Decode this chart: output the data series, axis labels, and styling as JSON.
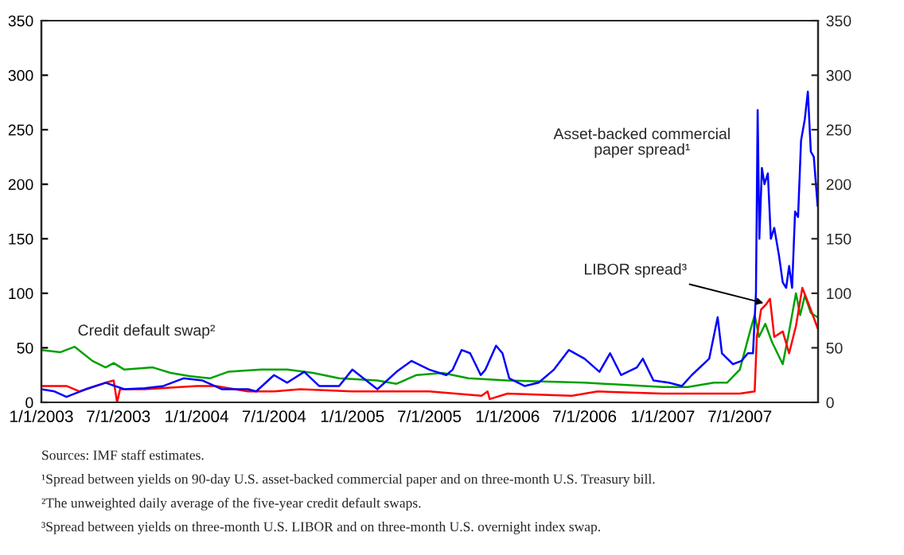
{
  "chart_data": {
    "type": "line",
    "grid": false,
    "xlim": [
      "2003-01-01",
      "2008-01-01"
    ],
    "xticks": [
      {
        "value": "2003-01-01",
        "label": "1/1/2003"
      },
      {
        "value": "2003-07-01",
        "label": "7/1/2003"
      },
      {
        "value": "2004-01-01",
        "label": "1/1/2004"
      },
      {
        "value": "2004-07-01",
        "label": "7/1/2004"
      },
      {
        "value": "2005-01-01",
        "label": "1/1/2005"
      },
      {
        "value": "2005-07-01",
        "label": "7/1/2005"
      },
      {
        "value": "2006-01-01",
        "label": "1/1/2006"
      },
      {
        "value": "2006-07-01",
        "label": "7/1/2006"
      },
      {
        "value": "2007-01-01",
        "label": "1/1/2007"
      },
      {
        "value": "2007-07-01",
        "label": "7/1/2007"
      }
    ],
    "ylim": [
      0,
      350
    ],
    "yticks": [
      0,
      50,
      100,
      150,
      200,
      250,
      300,
      350
    ],
    "y2lim": [
      0,
      350
    ],
    "y2ticks": [
      0,
      50,
      100,
      150,
      200,
      250,
      300,
      350
    ],
    "series": [
      {
        "name": "Credit default swap²",
        "color": "#00a000",
        "x": [
          "2003-01-01",
          "2003-02-15",
          "2003-03-20",
          "2003-05-01",
          "2003-06-01",
          "2003-06-20",
          "2003-07-15",
          "2003-09-20",
          "2003-11-01",
          "2003-12-15",
          "2004-02-01",
          "2004-03-15",
          "2004-06-01",
          "2004-08-01",
          "2004-10-01",
          "2004-12-01",
          "2005-03-01",
          "2005-04-15",
          "2005-06-01",
          "2005-08-01",
          "2005-10-01",
          "2006-01-01",
          "2006-07-01",
          "2007-01-01",
          "2007-03-01",
          "2007-05-01",
          "2007-06-01",
          "2007-07-01",
          "2007-07-25",
          "2007-08-05",
          "2007-08-15",
          "2007-08-30",
          "2007-09-15",
          "2007-10-10",
          "2007-10-25",
          "2007-11-10",
          "2007-11-20",
          "2007-12-01",
          "2007-12-15",
          "2007-12-31"
        ],
        "values": [
          48,
          46,
          51,
          38,
          32,
          36,
          30,
          32,
          27,
          24,
          22,
          28,
          30,
          30,
          27,
          22,
          20,
          17,
          25,
          27,
          22,
          20,
          18,
          14,
          14,
          18,
          18,
          30,
          65,
          80,
          60,
          72,
          55,
          35,
          65,
          100,
          80,
          98,
          82,
          78
        ]
      },
      {
        "color": "#ff0000",
        "x": [
          "2003-01-01",
          "2003-03-01",
          "2003-04-01",
          "2003-06-01",
          "2003-06-20",
          "2003-06-28",
          "2003-07-05",
          "2003-09-01",
          "2004-01-01",
          "2004-02-15",
          "2004-05-01",
          "2004-07-01",
          "2004-09-01",
          "2005-01-01",
          "2005-07-01",
          "2005-11-01",
          "2005-11-15",
          "2005-11-20",
          "2006-01-01",
          "2006-06-01",
          "2006-08-01",
          "2007-01-01",
          "2007-07-01",
          "2007-08-05",
          "2007-08-10",
          "2007-08-20",
          "2007-09-01",
          "2007-09-10",
          "2007-09-20",
          "2007-10-10",
          "2007-10-25",
          "2007-11-10",
          "2007-11-25",
          "2007-12-10",
          "2007-12-31"
        ],
        "values": [
          15,
          15,
          10,
          18,
          20,
          0,
          12,
          12,
          15,
          15,
          10,
          10,
          12,
          10,
          10,
          6,
          10,
          3,
          8,
          6,
          10,
          8,
          8,
          10,
          60,
          85,
          90,
          95,
          60,
          65,
          45,
          70,
          105,
          90,
          68
        ]
      },
      {
        "name": "Asset-backed commercial\npaper spread¹",
        "color": "#0000ff",
        "x": [
          "2003-01-01",
          "2003-02-01",
          "2003-03-01",
          "2003-04-15",
          "2003-06-01",
          "2003-07-15",
          "2003-09-01",
          "2003-10-15",
          "2003-12-01",
          "2004-01-15",
          "2004-03-01",
          "2004-05-01",
          "2004-05-20",
          "2004-07-01",
          "2004-08-01",
          "2004-09-10",
          "2004-10-15",
          "2004-12-01",
          "2005-01-01",
          "2005-03-01",
          "2005-04-15",
          "2005-05-20",
          "2005-07-01",
          "2005-08-10",
          "2005-08-25",
          "2005-09-15",
          "2005-10-05",
          "2005-10-30",
          "2005-11-10",
          "2005-12-05",
          "2005-12-20",
          "2006-01-05",
          "2006-02-10",
          "2006-03-15",
          "2006-04-20",
          "2006-05-25",
          "2006-07-01",
          "2006-08-05",
          "2006-08-30",
          "2006-09-25",
          "2006-11-01",
          "2006-11-15",
          "2006-12-10",
          "2007-01-15",
          "2007-02-15",
          "2007-03-10",
          "2007-04-20",
          "2007-05-10",
          "2007-05-20",
          "2007-06-15",
          "2007-07-05",
          "2007-07-20",
          "2007-08-01",
          "2007-08-08",
          "2007-08-12",
          "2007-08-16",
          "2007-08-22",
          "2007-08-28",
          "2007-09-05",
          "2007-09-12",
          "2007-09-20",
          "2007-10-01",
          "2007-10-10",
          "2007-10-18",
          "2007-10-25",
          "2007-11-01",
          "2007-11-08",
          "2007-11-15",
          "2007-11-22",
          "2007-12-01",
          "2007-12-08",
          "2007-12-15",
          "2007-12-22",
          "2007-12-31"
        ],
        "values": [
          12,
          10,
          5,
          12,
          18,
          12,
          13,
          15,
          22,
          20,
          12,
          12,
          10,
          25,
          18,
          28,
          15,
          15,
          30,
          12,
          28,
          38,
          30,
          25,
          30,
          48,
          45,
          25,
          30,
          52,
          45,
          22,
          15,
          18,
          30,
          48,
          40,
          28,
          45,
          25,
          32,
          40,
          20,
          18,
          15,
          25,
          40,
          78,
          45,
          35,
          38,
          45,
          45,
          100,
          268,
          150,
          215,
          200,
          210,
          150,
          160,
          135,
          110,
          105,
          125,
          105,
          175,
          170,
          240,
          260,
          285,
          230,
          225,
          180
        ]
      }
    ],
    "annotations": [
      {
        "text": "LIBOR spread³",
        "x": "2007-09-05",
        "y": 90
      },
      "Sources: IMF staff estimates.",
      "¹Spread between yields on 90-day U.S. asset-backed commercial paper and on three-month U.S. Treasury bill.",
      "²The unweighted daily average of the five-year credit default swaps.",
      "³Spread between yields on three-month U.S. LIBOR and on three-month U.S. overnight index swap."
    ]
  }
}
